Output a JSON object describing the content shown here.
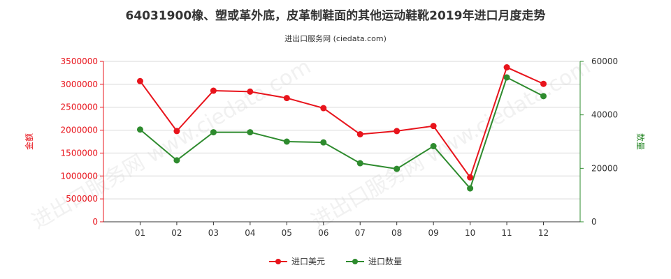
{
  "title": "64031900橡、塑或革外底，皮革制鞋面的其他运动鞋靴2019年进口月度走势",
  "subtitle": "进出口服务网 (ciedata.com)",
  "watermark": "进出口服务网 www.ciedata.com",
  "colors": {
    "amount": "#e8141c",
    "quantity": "#2e8b2e",
    "axis": "#333333",
    "grid": "#d8d8d8"
  },
  "legend": {
    "amount": "进口美元",
    "quantity": "进口数量"
  },
  "chart_data": {
    "type": "line",
    "categories": [
      "01",
      "02",
      "03",
      "04",
      "05",
      "06",
      "07",
      "08",
      "09",
      "10",
      "11",
      "12"
    ],
    "y_left": {
      "label": "金额",
      "ticks": [
        "0",
        "500000",
        "1000000",
        "1500000",
        "2000000",
        "2500000",
        "3000000",
        "3500000"
      ],
      "ylim": [
        0,
        3500000
      ]
    },
    "y_right": {
      "label": "数量",
      "ticks": [
        "0",
        "20000",
        "40000",
        "60000"
      ],
      "ylim": [
        0,
        60000
      ]
    },
    "series": [
      {
        "name": "进口美元",
        "axis": "left",
        "values": [
          3070000,
          1980000,
          2860000,
          2840000,
          2700000,
          2480000,
          1910000,
          1980000,
          2090000,
          970000,
          3370000,
          3010000
        ]
      },
      {
        "name": "进口数量",
        "axis": "right",
        "values": [
          34500,
          23000,
          33500,
          33500,
          30000,
          29700,
          21900,
          19800,
          28300,
          12500,
          54000,
          47000
        ]
      }
    ],
    "grid": true,
    "legend_position": "bottom-center"
  }
}
